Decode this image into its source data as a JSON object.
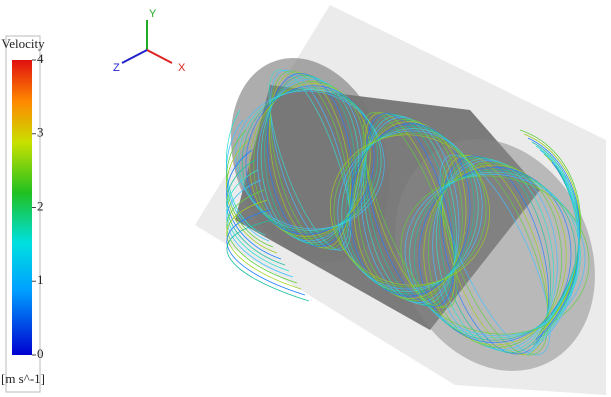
{
  "legend": {
    "title": "Velocity",
    "range": [
      0,
      4
    ],
    "ticks": [
      0,
      1,
      2,
      3,
      4
    ],
    "unit": "[m s^-1]"
  },
  "axes": {
    "y": "Y",
    "z": "Z",
    "x": "X"
  }
}
